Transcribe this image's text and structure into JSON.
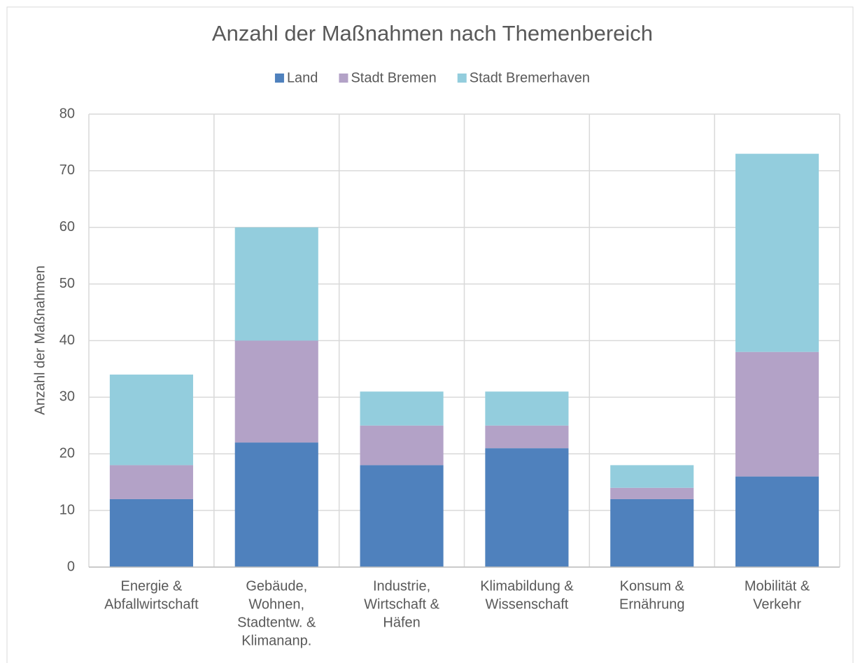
{
  "chart_data": {
    "type": "stacked_bar",
    "title": "Anzahl der Maßnahmen nach Themenbereich",
    "y_label": "Anzahl der Maßnahmen",
    "categories": [
      [
        "Energie &",
        "Abfallwirtschaft"
      ],
      [
        "Gebäude,",
        "Wohnen,",
        "Stadtentw. &",
        "Klimananp."
      ],
      [
        "Industrie,",
        "Wirtschaft &",
        "Häfen"
      ],
      [
        "Klimabildung &",
        "Wissenschaft"
      ],
      [
        "Konsum &",
        "Ernährung"
      ],
      [
        "Mobilität &",
        "Verkehr"
      ]
    ],
    "series": [
      {
        "name": "Land",
        "color": "#4f81bd",
        "values": [
          12,
          22,
          18,
          21,
          12,
          16
        ]
      },
      {
        "name": "Stadt Bremen",
        "color": "#b3a2c7",
        "values": [
          6,
          18,
          7,
          4,
          2,
          22
        ]
      },
      {
        "name": "Stadt Bremerhaven",
        "color": "#93cddd",
        "values": [
          16,
          20,
          6,
          6,
          4,
          35
        ]
      }
    ],
    "ylim": [
      0,
      80
    ],
    "yticks": [
      0,
      10,
      20,
      30,
      40,
      50,
      60,
      70,
      80
    ],
    "grid": true,
    "legend": "top"
  }
}
